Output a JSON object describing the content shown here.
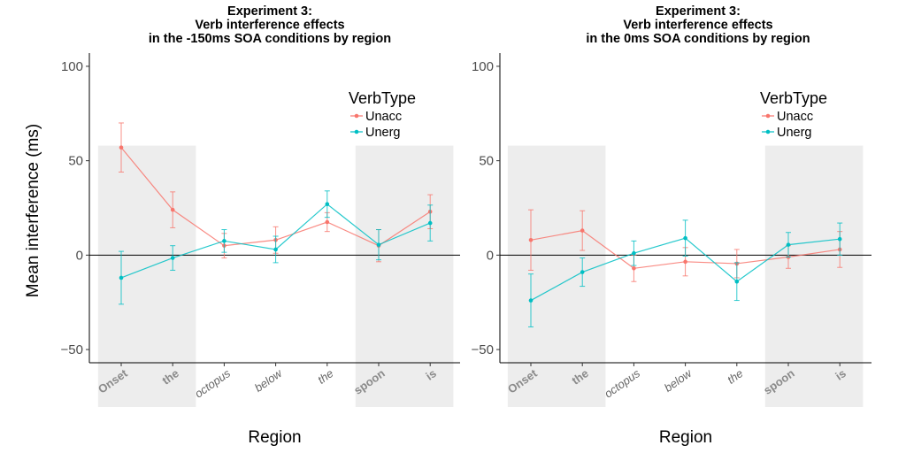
{
  "y_axis_label": "Mean interference (ms)",
  "chart_data": [
    {
      "type": "line",
      "title": [
        "Experiment  3:",
        "Verb interference effects",
        "in the -150ms SOA conditions by region"
      ],
      "xlabel": "Region",
      "categories": [
        "Onset",
        "the",
        "octopus",
        "below",
        "the",
        "spoon",
        "is"
      ],
      "bold_categories": [
        0,
        1,
        5,
        6
      ],
      "shaded_regions": [
        [
          0,
          1
        ],
        [
          5,
          6
        ]
      ],
      "ylim": [
        -57,
        107
      ],
      "yticks": [
        -50,
        0,
        50,
        100
      ],
      "grid": false,
      "legend": {
        "title": "VerbType",
        "position": "top-right"
      },
      "series": [
        {
          "name": "Unacc",
          "color": "#F8766D",
          "values": [
            57,
            24,
            5,
            8,
            17.5,
            5,
            23
          ],
          "errors": [
            13,
            9.5,
            6.5,
            7,
            5,
            8.5,
            9
          ]
        },
        {
          "name": "Unerg",
          "color": "#00BFC4",
          "values": [
            -12,
            -1.5,
            7.5,
            3,
            27,
            5.5,
            17
          ],
          "errors": [
            14,
            6.5,
            6,
            7,
            7,
            8,
            9.5
          ]
        }
      ]
    },
    {
      "type": "line",
      "title": [
        "Experiment  3:",
        "Verb interference effects",
        "in the 0ms SOA conditions by region"
      ],
      "xlabel": "Region",
      "categories": [
        "Onset",
        "the",
        "octopus",
        "below",
        "the",
        "spoon",
        "is"
      ],
      "bold_categories": [
        0,
        1,
        5,
        6
      ],
      "shaded_regions": [
        [
          0,
          1
        ],
        [
          5,
          6
        ]
      ],
      "ylim": [
        -57,
        107
      ],
      "yticks": [
        -50,
        0,
        50,
        100
      ],
      "grid": false,
      "legend": {
        "title": "VerbType",
        "position": "top-right"
      },
      "series": [
        {
          "name": "Unacc",
          "color": "#F8766D",
          "values": [
            8,
            13,
            -7,
            -3.5,
            -4.5,
            -1,
            3
          ],
          "errors": [
            16,
            10.5,
            7,
            7.5,
            7.5,
            6,
            9.5
          ]
        },
        {
          "name": "Unerg",
          "color": "#00BFC4",
          "values": [
            -24,
            -9,
            1,
            9,
            -14,
            5.5,
            8.5
          ],
          "errors": [
            14,
            7.5,
            6.5,
            9.5,
            10,
            6.5,
            8.5
          ]
        }
      ]
    }
  ]
}
